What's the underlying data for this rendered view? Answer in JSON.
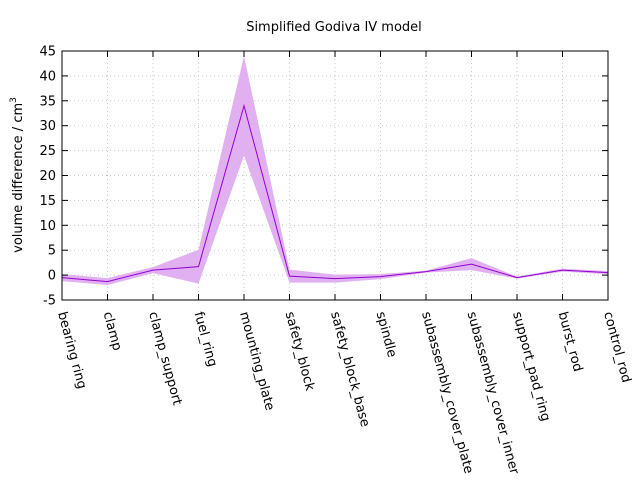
{
  "chart_data": {
    "type": "line",
    "title": "Simplified Godiva IV model",
    "ylabel": "volume difference / cm",
    "ylabel_sup": "3",
    "xlabel": "",
    "ylim": [
      -5,
      45
    ],
    "yticks": [
      -5,
      0,
      5,
      10,
      15,
      20,
      25,
      30,
      35,
      40,
      45
    ],
    "grid": true,
    "categories": [
      "bearing ring",
      "clamp",
      "clamp_support",
      "fuel_ring",
      "mounting_plate",
      "safety_block",
      "safety_block_base",
      "spindle",
      "subassembly_cover_plate",
      "subassembly_cover_inner",
      "support_pad_ring",
      "burst_rod",
      "control_rod"
    ],
    "series": [
      {
        "values": [
          -0.5,
          -1.3,
          1.0,
          1.7,
          34.0,
          -0.2,
          -0.7,
          -0.3,
          0.7,
          2.2,
          -0.5,
          1.0,
          0.5
        ],
        "lower": [
          -1.2,
          -2.0,
          0.4,
          -1.7,
          24.0,
          -1.5,
          -1.5,
          -0.8,
          0.5,
          1.0,
          -0.7,
          0.7,
          0.2
        ],
        "upper": [
          0.2,
          -0.6,
          1.6,
          5.1,
          44.0,
          1.1,
          0.1,
          0.2,
          0.9,
          3.4,
          -0.3,
          1.3,
          0.8
        ],
        "color": "#9400d3",
        "band_color": "#e0b0f0"
      }
    ]
  }
}
